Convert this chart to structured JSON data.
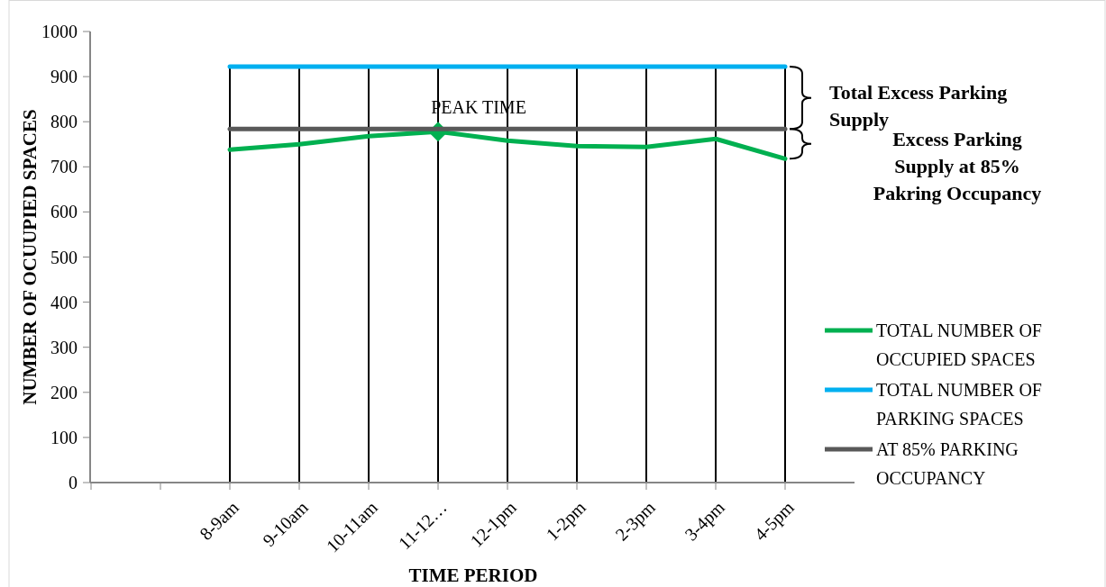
{
  "chart_data": {
    "type": "line",
    "xlabel": "TIME PERIOD",
    "ylabel": "NUMBER OF OCUUPIED SPACES",
    "categories": [
      null,
      null,
      "8-9am",
      "9-10am",
      "10-11am",
      "11-12…",
      "12-1pm",
      "1-2pm",
      "2-3pm",
      "3-4pm",
      "4-5pm"
    ],
    "series": [
      {
        "name": "TOTAL NUMBER OF OCCUPIED SPACES",
        "color": "#00b050",
        "values": [
          null,
          null,
          738,
          750,
          768,
          778,
          758,
          746,
          744,
          762,
          718
        ]
      },
      {
        "name": "TOTAL NUMBER OF PARKING SPACES",
        "color": "#00b0f0",
        "values": [
          null,
          null,
          922,
          922,
          922,
          922,
          922,
          922,
          922,
          922,
          922
        ]
      },
      {
        "name": "AT 85% PARKING OCCUPANCY",
        "color": "#595959",
        "values": [
          null,
          null,
          784,
          784,
          784,
          784,
          784,
          784,
          784,
          784,
          784
        ]
      }
    ],
    "ylim": [
      0,
      1000
    ],
    "yticks": [
      0,
      100,
      200,
      300,
      400,
      500,
      600,
      700,
      800,
      900,
      1000
    ],
    "grid": "x",
    "legend": "right",
    "marker": "none",
    "line_style": "solid",
    "annotations": [
      {
        "text": "PEAK TIME",
        "x": "11-12…",
        "y": 778
      },
      "Total Excess Parking Supply",
      "Excess Parking Supply at 85% Pakring Occupancy"
    ]
  }
}
